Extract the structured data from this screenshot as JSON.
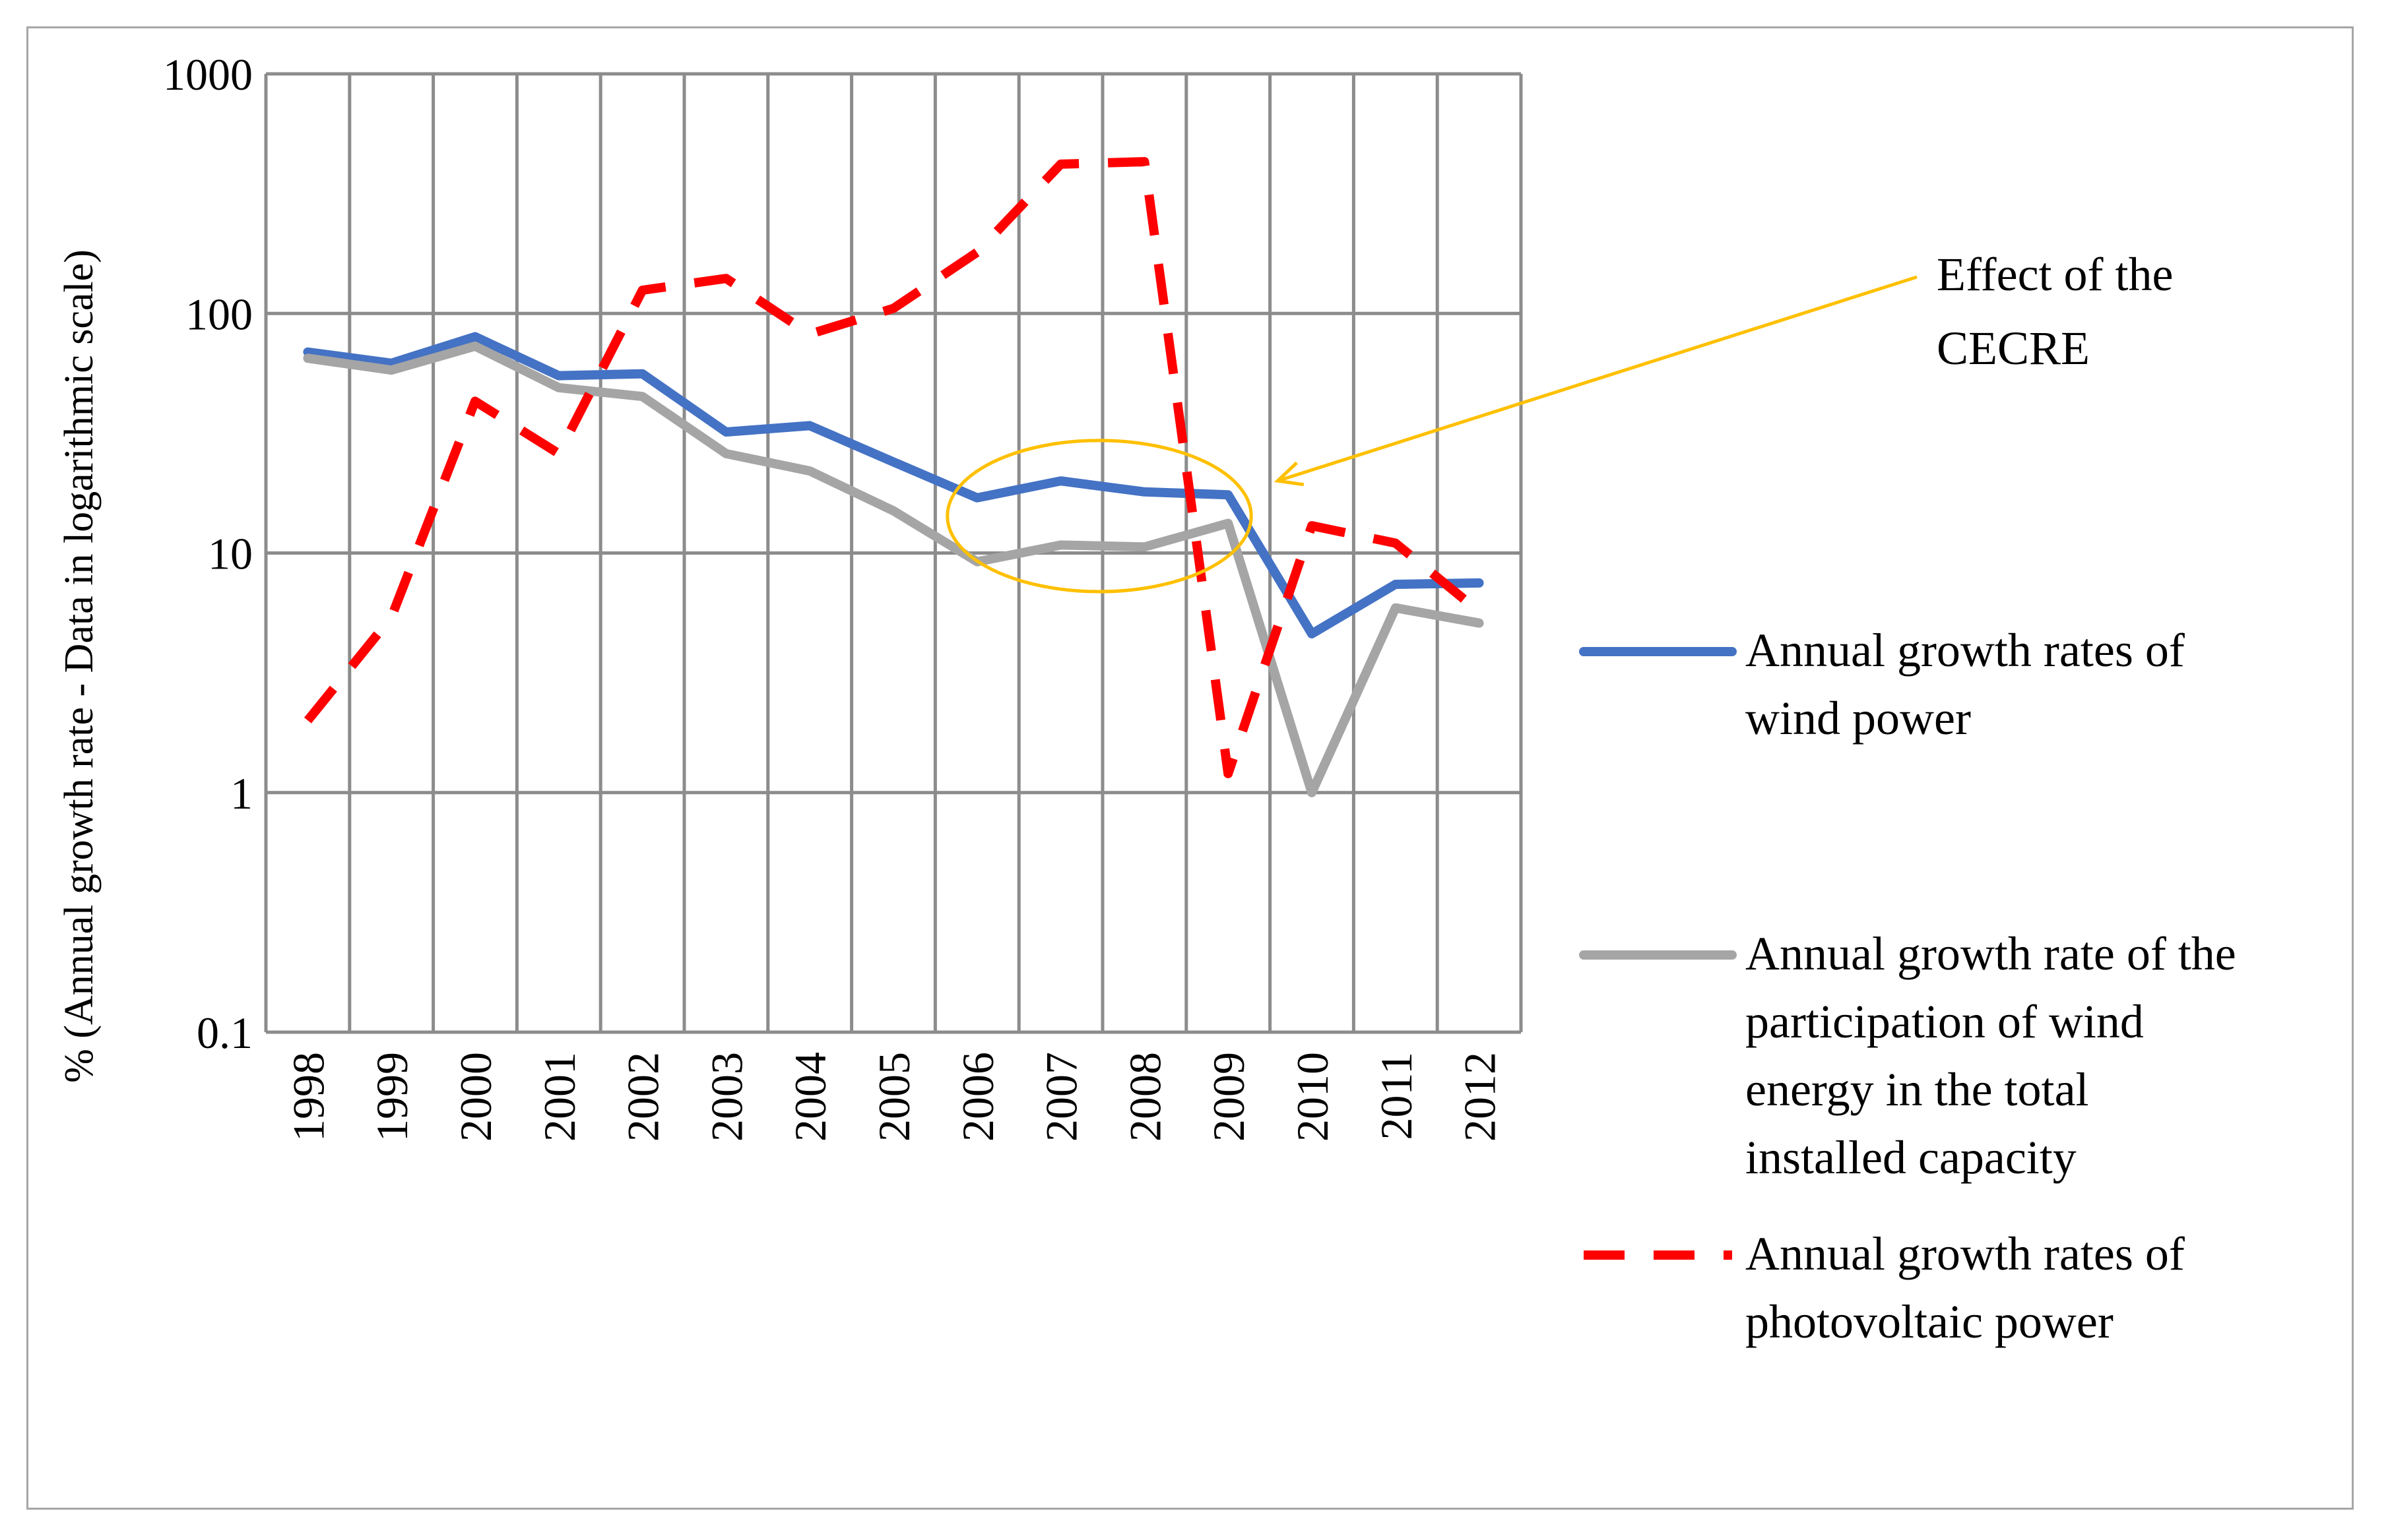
{
  "chart_data": {
    "type": "line",
    "title": "",
    "xlabel": "",
    "ylabel": "% (Annual growth rate - Data in logarithmic scale)",
    "yscale": "log",
    "ylim": [
      0.1,
      1000
    ],
    "ytick_labels": [
      "0.1",
      "1",
      "10",
      "100",
      "1000"
    ],
    "ytick_values": [
      0.1,
      1,
      10,
      100,
      1000
    ],
    "categories": [
      "1998",
      "1999",
      "2000",
      "2001",
      "2002",
      "2003",
      "2004",
      "2005",
      "2006",
      "2007",
      "2008",
      "2009",
      "2010",
      "2011",
      "2012"
    ],
    "grid": true,
    "legend_position": "right",
    "series": [
      {
        "name": "wind",
        "legend": [
          "Annual growth rates of",
          "wind power"
        ],
        "color": "#4472c4",
        "style": "solid",
        "values": [
          69,
          62,
          80,
          55,
          56,
          32,
          34,
          24,
          17,
          20,
          18,
          17.5,
          4.6,
          7.4,
          7.5
        ]
      },
      {
        "name": "participation",
        "legend": [
          "Annual growth rate of the",
          "participation of wind",
          "energy in the total",
          "installed capacity"
        ],
        "color": "#a5a5a5",
        "style": "solid",
        "values": [
          65,
          58,
          73,
          49,
          45,
          26,
          22,
          15,
          9.2,
          10.8,
          10.6,
          13.3,
          1.0,
          5.9,
          5.1
        ]
      },
      {
        "name": "photovoltaic",
        "legend": [
          "Annual growth rates of",
          "photovoltaic power"
        ],
        "color": "#ff0000",
        "style": "dashed",
        "values": [
          2.0,
          5.4,
          43,
          26,
          125,
          140,
          82,
          105,
          180,
          420,
          430,
          1.2,
          13,
          11,
          5.7
        ]
      }
    ],
    "annotation": {
      "text": [
        "Effect of the",
        "CECRE"
      ],
      "color": "#ffc000",
      "points_to": "2009"
    }
  }
}
